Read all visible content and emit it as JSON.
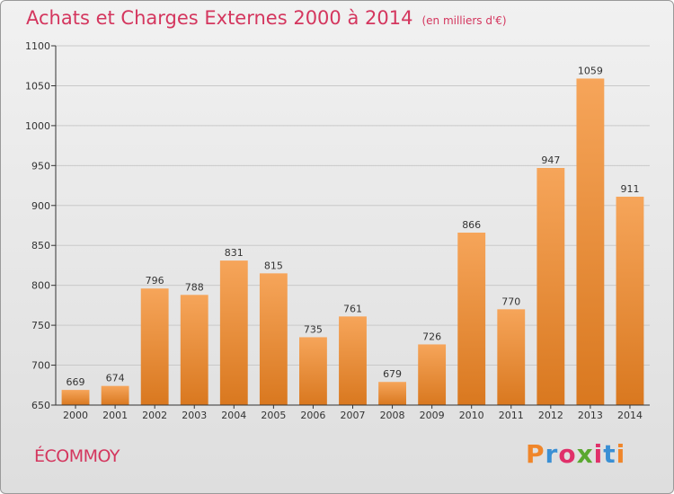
{
  "header": {
    "title": "Achats et Charges Externes 2000 à 2014",
    "unit": "(en milliers d'€)"
  },
  "footer": {
    "place": "ÉCOMMOY",
    "brand": "Proxiti",
    "brand_colors": [
      "#f0862a",
      "#3a8fd4",
      "#e0306a",
      "#5aa830",
      "#e0306a",
      "#3a8fd4",
      "#f0862a"
    ]
  },
  "colors": {
    "title": "#d4365e",
    "bar_light": "#f6a55a",
    "bar_dark": "#d9781f"
  },
  "chart_data": {
    "type": "bar",
    "title": "Achats et Charges Externes 2000 à 2014",
    "subtitle": "(en milliers d'€)",
    "categories": [
      "2000",
      "2001",
      "2002",
      "2003",
      "2004",
      "2005",
      "2006",
      "2007",
      "2008",
      "2009",
      "2010",
      "2011",
      "2012",
      "2013",
      "2014"
    ],
    "values": [
      669,
      674,
      796,
      788,
      831,
      815,
      735,
      761,
      679,
      726,
      866,
      770,
      947,
      1059,
      911
    ],
    "ylim": [
      650,
      1100
    ],
    "yticks": [
      650,
      700,
      750,
      800,
      850,
      900,
      950,
      1000,
      1050,
      1100
    ],
    "grid": true,
    "data_labels": true
  }
}
